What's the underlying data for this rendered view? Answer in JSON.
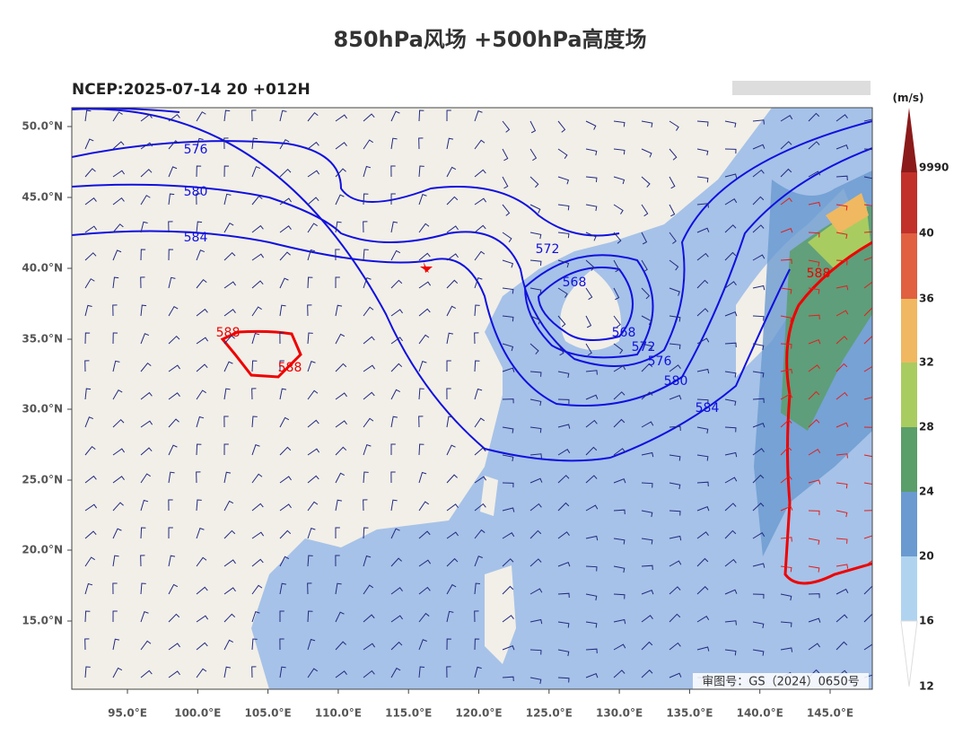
{
  "header": {
    "title": "850hPa风场 +500hPa高度场",
    "subtitle": "NCEP:2025-07-14 20 +012H"
  },
  "map": {
    "lat_ticks": [
      "50.0°N",
      "45.0°N",
      "40.0°N",
      "35.0°N",
      "30.0°N",
      "25.0°N",
      "20.0°N",
      "15.0°N"
    ],
    "lon_ticks": [
      "95.0°E",
      "100.0°E",
      "105.0°E",
      "110.0°E",
      "115.0°E",
      "120.0°E",
      "125.0°E",
      "130.0°E",
      "135.0°E",
      "140.0°E",
      "145.0°E"
    ],
    "contour_labels": [
      "576",
      "580",
      "584",
      "572",
      "568",
      "568",
      "572",
      "576",
      "580",
      "584",
      "588",
      "588",
      "588"
    ],
    "approval": "审图号：GS（2024）0650号"
  },
  "colorbar": {
    "unit": "(m/s)",
    "labels": [
      "9990",
      "40",
      "36",
      "32",
      "28",
      "24",
      "20",
      "16",
      "12"
    ]
  }
}
